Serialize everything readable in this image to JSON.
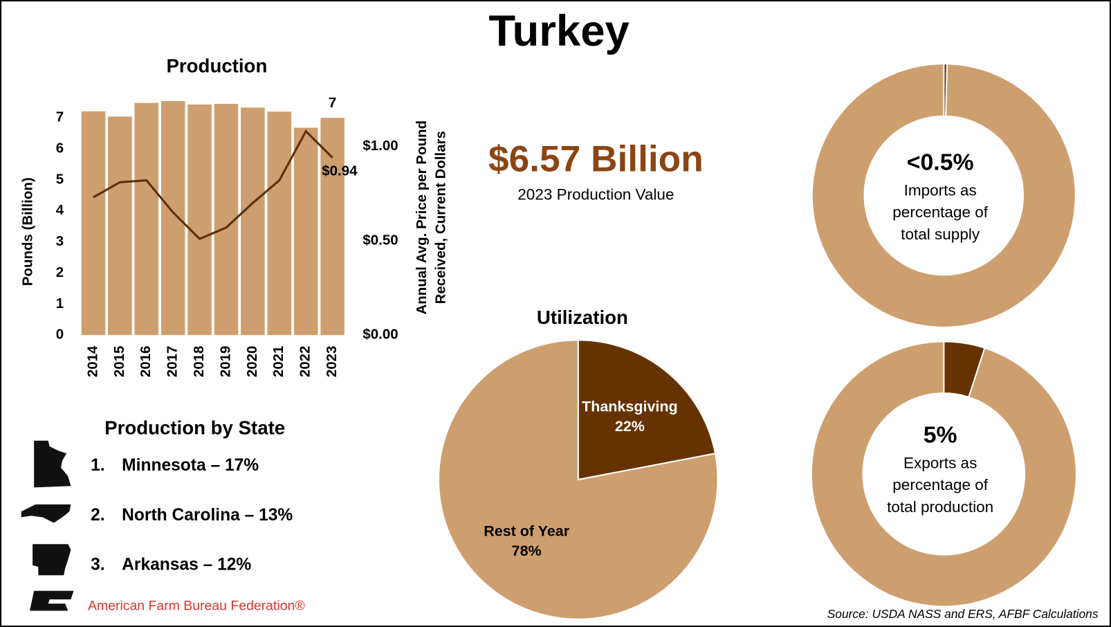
{
  "title": "Turkey",
  "stat": {
    "value": "$6.57 Billion",
    "caption": "2023 Production Value"
  },
  "states": {
    "title": "Production by State",
    "items": [
      {
        "rank": "1.",
        "label": "Minnesota – 17%"
      },
      {
        "rank": "2.",
        "label": "North Carolina – 13%"
      },
      {
        "rank": "3.",
        "label": "Arkansas – 12%"
      }
    ]
  },
  "logo": "American Farm Bureau Federation®",
  "source": "Source: USDA NASS and ERS, AFBF Calculations",
  "chart_data": [
    {
      "type": "bar",
      "title": "Production",
      "categories": [
        "2014",
        "2015",
        "2016",
        "2017",
        "2018",
        "2019",
        "2020",
        "2021",
        "2022",
        "2023"
      ],
      "series": [
        {
          "type": "bar",
          "color": "#cd9f6e",
          "values": [
            7.21,
            7.04,
            7.48,
            7.54,
            7.43,
            7.45,
            7.33,
            7.2,
            6.68,
            7.0
          ],
          "value_labels": [
            null,
            null,
            null,
            null,
            null,
            null,
            null,
            null,
            null,
            "7"
          ]
        },
        {
          "type": "line",
          "axis": "y2",
          "color": "#5c2e0a",
          "values": [
            0.73,
            0.81,
            0.82,
            0.65,
            0.51,
            0.57,
            0.7,
            0.82,
            1.08,
            0.94
          ],
          "value_labels": [
            null,
            null,
            null,
            null,
            null,
            null,
            null,
            null,
            null,
            "$0.94"
          ]
        }
      ],
      "ylim": [
        0,
        7.6
      ],
      "yticks": [
        0,
        1,
        2,
        3,
        4,
        5,
        6,
        7
      ],
      "y2lim": [
        0,
        1.25
      ],
      "y2ticks": [
        {
          "value": 0,
          "label": "$0.00"
        },
        {
          "value": 0.5,
          "label": "$0.50"
        },
        {
          "value": 1,
          "label": "$1.00"
        }
      ],
      "ylabel": "Pounds (Billion)",
      "y2label": [
        "Annual Avg. Price per Pound",
        "Received, Current Dollars"
      ]
    },
    {
      "type": "pie",
      "title": "Utilization",
      "categories": [
        "Thanksgiving",
        "Rest of Year"
      ],
      "values": [
        22,
        78
      ],
      "value_labels": [
        "22%",
        "78%"
      ],
      "colors": [
        "#663300",
        "#cd9f6e"
      ]
    },
    {
      "type": "donut",
      "values": [
        0.4,
        99.6
      ],
      "value_labels": [
        "<0.5%",
        null
      ],
      "colors": [
        "#663300",
        "#cd9f6e"
      ],
      "caption": [
        "Imports as",
        "percentage of",
        "total supply"
      ]
    },
    {
      "type": "donut",
      "values": [
        5,
        95
      ],
      "value_labels": [
        "5%",
        null
      ],
      "colors": [
        "#663300",
        "#cd9f6e"
      ],
      "caption": [
        "Exports as",
        "percentage of",
        "total production"
      ]
    }
  ]
}
